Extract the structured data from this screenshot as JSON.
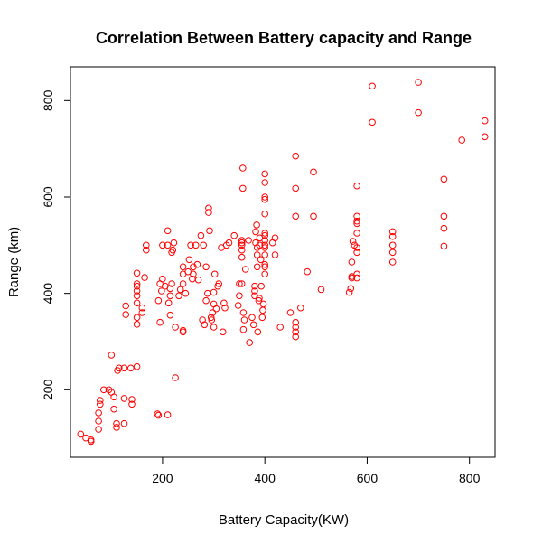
{
  "chart_data": {
    "type": "scatter",
    "title": "Correlation Between Battery capacity and Range",
    "xlabel": "Battery Capacity(KW)",
    "ylabel": "Range (km)",
    "xlim": [
      20,
      850
    ],
    "ylim": [
      60,
      870
    ],
    "xticks": [
      200,
      400,
      600,
      800
    ],
    "yticks": [
      200,
      400,
      600,
      800
    ],
    "grid": false,
    "point_color": "#ff0000",
    "points": [
      [
        40,
        108
      ],
      [
        50,
        100
      ],
      [
        60,
        93
      ],
      [
        60,
        96
      ],
      [
        75,
        118
      ],
      [
        75,
        135
      ],
      [
        75,
        152
      ],
      [
        78,
        170
      ],
      [
        78,
        178
      ],
      [
        85,
        200
      ],
      [
        95,
        200
      ],
      [
        100,
        195
      ],
      [
        100,
        272
      ],
      [
        105,
        160
      ],
      [
        105,
        185
      ],
      [
        110,
        122
      ],
      [
        110,
        130
      ],
      [
        112,
        240
      ],
      [
        115,
        245
      ],
      [
        125,
        182
      ],
      [
        125,
        245
      ],
      [
        125,
        130
      ],
      [
        128,
        356
      ],
      [
        128,
        374
      ],
      [
        138,
        245
      ],
      [
        140,
        170
      ],
      [
        140,
        180
      ],
      [
        150,
        248
      ],
      [
        150,
        336
      ],
      [
        150,
        350
      ],
      [
        150,
        380
      ],
      [
        150,
        395
      ],
      [
        150,
        405
      ],
      [
        150,
        415
      ],
      [
        150,
        420
      ],
      [
        150,
        442
      ],
      [
        160,
        360
      ],
      [
        160,
        370
      ],
      [
        165,
        433
      ],
      [
        168,
        490
      ],
      [
        168,
        500
      ],
      [
        190,
        150
      ],
      [
        192,
        147
      ],
      [
        192,
        385
      ],
      [
        195,
        340
      ],
      [
        195,
        420
      ],
      [
        198,
        405
      ],
      [
        200,
        430
      ],
      [
        200,
        500
      ],
      [
        205,
        415
      ],
      [
        210,
        148
      ],
      [
        210,
        530
      ],
      [
        210,
        500
      ],
      [
        212,
        380
      ],
      [
        215,
        355
      ],
      [
        215,
        395
      ],
      [
        215,
        410
      ],
      [
        218,
        420
      ],
      [
        218,
        485
      ],
      [
        220,
        490
      ],
      [
        222,
        505
      ],
      [
        225,
        330
      ],
      [
        225,
        225
      ],
      [
        232,
        395
      ],
      [
        235,
        408
      ],
      [
        240,
        320
      ],
      [
        240,
        323
      ],
      [
        240,
        420
      ],
      [
        240,
        440
      ],
      [
        240,
        455
      ],
      [
        245,
        400
      ],
      [
        250,
        445
      ],
      [
        252,
        470
      ],
      [
        255,
        500
      ],
      [
        258,
        430
      ],
      [
        260,
        455
      ],
      [
        260,
        440
      ],
      [
        265,
        500
      ],
      [
        268,
        460
      ],
      [
        270,
        428
      ],
      [
        275,
        520
      ],
      [
        278,
        345
      ],
      [
        280,
        500
      ],
      [
        282,
        335
      ],
      [
        285,
        385
      ],
      [
        285,
        455
      ],
      [
        288,
        400
      ],
      [
        290,
        568
      ],
      [
        290,
        577
      ],
      [
        292,
        530
      ],
      [
        295,
        350
      ],
      [
        296,
        345
      ],
      [
        298,
        360
      ],
      [
        300,
        378
      ],
      [
        300,
        330
      ],
      [
        300,
        402
      ],
      [
        302,
        440
      ],
      [
        305,
        368
      ],
      [
        308,
        415
      ],
      [
        310,
        420
      ],
      [
        315,
        495
      ],
      [
        318,
        320
      ],
      [
        320,
        380
      ],
      [
        322,
        370
      ],
      [
        325,
        500
      ],
      [
        330,
        505
      ],
      [
        340,
        520
      ],
      [
        348,
        375
      ],
      [
        350,
        395
      ],
      [
        350,
        420
      ],
      [
        355,
        420
      ],
      [
        355,
        475
      ],
      [
        355,
        490
      ],
      [
        355,
        500
      ],
      [
        355,
        510
      ],
      [
        355,
        505
      ],
      [
        357,
        618
      ],
      [
        357,
        660
      ],
      [
        358,
        360
      ],
      [
        358,
        325
      ],
      [
        360,
        345
      ],
      [
        362,
        450
      ],
      [
        368,
        510
      ],
      [
        370,
        298
      ],
      [
        375,
        350
      ],
      [
        378,
        335
      ],
      [
        380,
        395
      ],
      [
        380,
        405
      ],
      [
        380,
        415
      ],
      [
        382,
        505
      ],
      [
        382,
        528
      ],
      [
        384,
        542
      ],
      [
        385,
        455
      ],
      [
        385,
        480
      ],
      [
        385,
        495
      ],
      [
        386,
        320
      ],
      [
        388,
        385
      ],
      [
        389,
        390
      ],
      [
        390,
        500
      ],
      [
        390,
        515
      ],
      [
        392,
        470
      ],
      [
        393,
        415
      ],
      [
        395,
        350
      ],
      [
        396,
        365
      ],
      [
        397,
        378
      ],
      [
        400,
        440
      ],
      [
        400,
        455
      ],
      [
        400,
        460
      ],
      [
        400,
        480
      ],
      [
        400,
        495
      ],
      [
        400,
        500
      ],
      [
        400,
        510
      ],
      [
        400,
        520
      ],
      [
        400,
        525
      ],
      [
        400,
        565
      ],
      [
        400,
        595
      ],
      [
        400,
        600
      ],
      [
        400,
        630
      ],
      [
        400,
        648
      ],
      [
        415,
        505
      ],
      [
        420,
        480
      ],
      [
        420,
        515
      ],
      [
        430,
        330
      ],
      [
        450,
        360
      ],
      [
        460,
        310
      ],
      [
        460,
        320
      ],
      [
        460,
        330
      ],
      [
        460,
        340
      ],
      [
        460,
        560
      ],
      [
        460,
        618
      ],
      [
        460,
        685
      ],
      [
        470,
        370
      ],
      [
        483,
        445
      ],
      [
        495,
        560
      ],
      [
        495,
        652
      ],
      [
        510,
        408
      ],
      [
        565,
        402
      ],
      [
        568,
        410
      ],
      [
        570,
        432
      ],
      [
        570,
        435
      ],
      [
        570,
        465
      ],
      [
        572,
        508
      ],
      [
        575,
        500
      ],
      [
        580,
        432
      ],
      [
        580,
        440
      ],
      [
        580,
        485
      ],
      [
        580,
        495
      ],
      [
        580,
        525
      ],
      [
        580,
        545
      ],
      [
        580,
        550
      ],
      [
        580,
        560
      ],
      [
        580,
        623
      ],
      [
        610,
        830
      ],
      [
        610,
        755
      ],
      [
        650,
        465
      ],
      [
        650,
        485
      ],
      [
        650,
        500
      ],
      [
        650,
        518
      ],
      [
        650,
        528
      ],
      [
        700,
        838
      ],
      [
        700,
        775
      ],
      [
        750,
        498
      ],
      [
        750,
        535
      ],
      [
        750,
        560
      ],
      [
        750,
        637
      ],
      [
        785,
        718
      ],
      [
        830,
        725
      ],
      [
        830,
        758
      ]
    ]
  }
}
